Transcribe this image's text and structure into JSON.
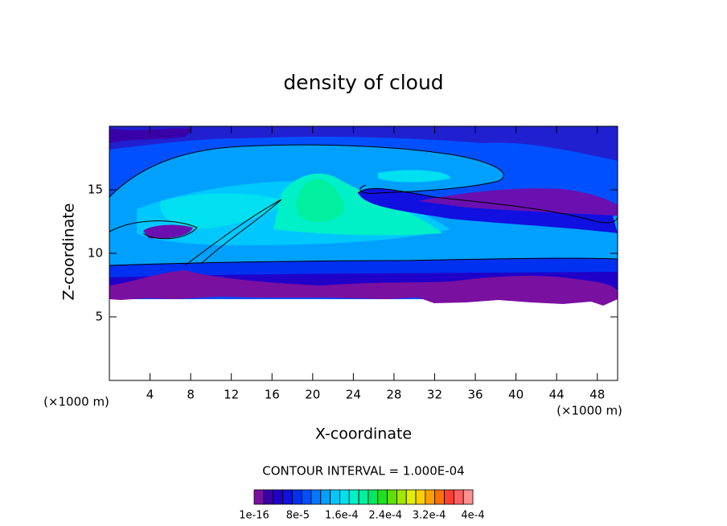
{
  "chart_data": {
    "type": "contour",
    "title": "density of cloud",
    "x_label": "X-coordinate",
    "y_label": "Z-coordinate",
    "x_unit": "(×1000 m)",
    "y_unit": "(×1000 m)",
    "xlim": [
      0,
      50
    ],
    "xticks": [
      4,
      8,
      12,
      16,
      20,
      24,
      28,
      32,
      36,
      40,
      44,
      48
    ],
    "ylim": [
      0,
      20
    ],
    "yticks": [
      5,
      10,
      15
    ],
    "contour_interval": "CONTOUR INTERVAL = 1.000E-04",
    "colorbar": {
      "lim": [
        1e-16,
        0.0004
      ],
      "colors": [
        "#7a10a0",
        "#3a00a8",
        "#2000c8",
        "#1010e0",
        "#0030f0",
        "#0050ff",
        "#0078ff",
        "#00a0ff",
        "#00c8ff",
        "#00e0f0",
        "#00f0c8",
        "#00f0a0",
        "#00e860",
        "#20e020",
        "#60e000",
        "#a0e800",
        "#e0f000",
        "#ffd000",
        "#ffa000",
        "#ff7000",
        "#ff4030",
        "#ff6060",
        "#ff9090"
      ],
      "ticks": [
        1e-16,
        {
          "value": 8e-05,
          "label": "8e-5"
        },
        {
          "value": 0.00016,
          "label": "1.6e-4"
        },
        {
          "value": 0.00024,
          "label": "2.4e-4"
        },
        {
          "value": 0.00032,
          "label": "3.2e-4"
        },
        {
          "value": 0.0004,
          "label": "4e-4"
        }
      ]
    }
  }
}
